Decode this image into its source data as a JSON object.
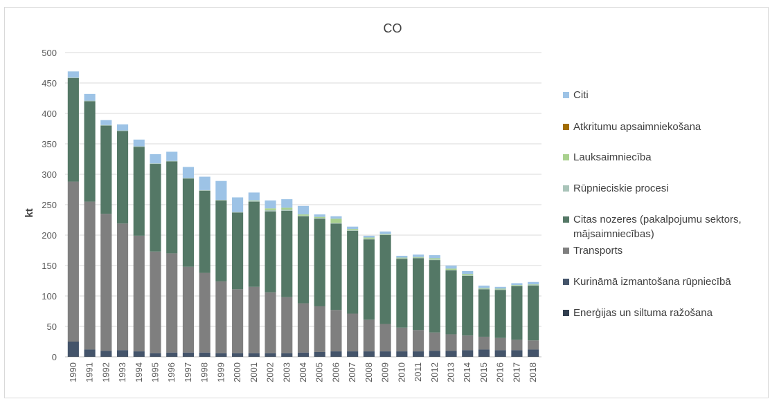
{
  "chart_data": {
    "type": "bar",
    "stacked": true,
    "title": "CO",
    "ylabel": "kt",
    "xlabel": "",
    "ylim": [
      0,
      500
    ],
    "yticks": [
      0,
      50,
      100,
      150,
      200,
      250,
      300,
      350,
      400,
      450,
      500
    ],
    "grid": true,
    "legend_position": "right",
    "categories": [
      "1990",
      "1991",
      "1992",
      "1993",
      "1994",
      "1995",
      "1996",
      "1997",
      "1998",
      "1999",
      "2000",
      "2001",
      "2002",
      "2003",
      "2004",
      "2005",
      "2006",
      "2007",
      "2008",
      "2009",
      "2010",
      "2011",
      "2012",
      "2013",
      "2014",
      "2015",
      "2016",
      "2017",
      "2018"
    ],
    "series": [
      {
        "name": "Enerģijas un siltuma ražošana",
        "color": "#323f4f",
        "values": [
          1,
          1,
          1,
          1,
          1,
          1,
          1,
          1,
          1,
          1,
          1,
          1,
          1,
          1,
          1,
          1,
          1,
          1,
          1,
          1,
          1,
          1,
          1,
          1,
          1,
          1,
          1,
          1,
          1
        ]
      },
      {
        "name": "Kurināmā izmantošana rūpniecībā",
        "color": "#44546a",
        "values": [
          24,
          11,
          9,
          10,
          8,
          5,
          6,
          6,
          6,
          5,
          5,
          5,
          5,
          5,
          6,
          7,
          8,
          8,
          8,
          8,
          8,
          8,
          9,
          9,
          10,
          11,
          10,
          10,
          11
        ]
      },
      {
        "name": "Transports",
        "color": "#7f7f7f",
        "values": [
          263,
          243,
          225,
          208,
          190,
          167,
          163,
          141,
          131,
          118,
          105,
          109,
          100,
          92,
          81,
          75,
          68,
          62,
          52,
          45,
          39,
          35,
          30,
          27,
          24,
          21,
          20,
          17,
          15
        ]
      },
      {
        "name": "Citas nozeres (pakalpojumu sektors, mājsaimniecības)",
        "color": "#547866",
        "values": [
          170,
          165,
          145,
          152,
          146,
          144,
          151,
          145,
          135,
          133,
          126,
          140,
          133,
          142,
          143,
          144,
          142,
          136,
          132,
          146,
          113,
          118,
          119,
          105,
          98,
          78,
          79,
          88,
          90
        ]
      },
      {
        "name": "Rūpnieciskie procesi",
        "color": "#a9c4b9",
        "values": [
          1,
          1,
          1,
          1,
          1,
          1,
          1,
          1,
          1,
          1,
          1,
          1,
          2,
          2,
          1,
          1,
          1,
          1,
          1,
          1,
          1,
          1,
          1,
          1,
          1,
          1,
          1,
          1,
          1
        ]
      },
      {
        "name": "Lauksaimniecība",
        "color": "#a9d18e",
        "values": [
          0,
          0,
          0,
          0,
          0,
          0,
          0,
          0,
          0,
          0,
          0,
          1,
          3,
          3,
          2,
          2,
          7,
          2,
          2,
          1,
          1,
          1,
          2,
          2,
          2,
          1,
          1,
          1,
          1
        ]
      },
      {
        "name": "Atkritumu apsaimniekošana",
        "color": "#a16c00",
        "values": [
          0,
          0,
          0,
          0,
          0,
          0,
          0,
          0,
          0,
          0,
          0,
          0,
          0,
          0,
          0,
          0,
          0,
          0,
          0,
          0,
          0,
          0,
          0,
          0,
          0,
          0,
          0,
          0,
          0
        ]
      },
      {
        "name": "Citi",
        "color": "#9dc3e6",
        "values": [
          10,
          11,
          8,
          10,
          11,
          15,
          15,
          18,
          22,
          31,
          24,
          13,
          13,
          14,
          14,
          4,
          4,
          4,
          3,
          4,
          3,
          4,
          5,
          5,
          5,
          4,
          3,
          3,
          4
        ]
      }
    ]
  },
  "legend": {
    "items": [
      {
        "label": "Citi",
        "color": "#9dc3e6"
      },
      {
        "label": "Atkritumu apsaimniekošana",
        "color": "#a16c00"
      },
      {
        "label": "Lauksaimniecība",
        "color": "#a9d18e"
      },
      {
        "label": "Rūpnieciskie procesi",
        "color": "#a9c4b9"
      },
      {
        "label": "Citas nozeres (pakalpojumu sektors, mājsaimniecības)",
        "color": "#547866"
      },
      {
        "label": "Transports",
        "color": "#7f7f7f"
      },
      {
        "label": "Kurināmā izmantošana rūpniecībā",
        "color": "#44546a"
      },
      {
        "label": "Enerģijas un siltuma ražošana",
        "color": "#323f4f"
      }
    ]
  }
}
